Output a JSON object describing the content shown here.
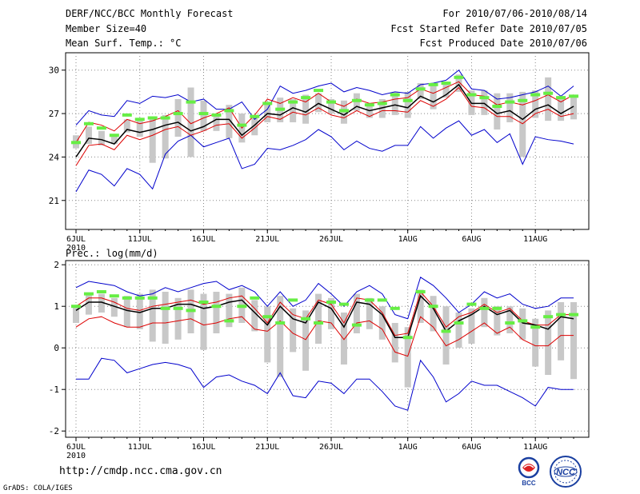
{
  "header": {
    "title": "DERF/NCC/BCC Monthly Forecast",
    "member_size": "Member Size=40",
    "variable": "Mean Surf. Temp.: °C",
    "period": "For 2010/07/06-2010/08/14",
    "refer_date": "Fcst Started Refer Date 2010/07/05",
    "produced_date": "Fcst Produced Date 2010/07/06"
  },
  "footer": {
    "url": "http://cmdp.ncc.cma.gov.cn",
    "grads": "GrADS: COLA/IGES",
    "logo_bcc": "BCC",
    "logo_ncc": "NCC"
  },
  "colors": {
    "upper_envelope": "#0000cc",
    "lower_envelope": "#0000cc",
    "red_band": "#dd0000",
    "ensemble_mean": "#000000",
    "box": "#c8c8c8",
    "climatology": "#66ee44"
  },
  "chart_data": [
    {
      "type": "line",
      "title": "Mean Surf. Temp.: °C",
      "x_start_day": 6,
      "n_days": 40,
      "xticks": [
        {
          "day": 0,
          "label": "6JUL"
        },
        {
          "day": 5,
          "label": "11JUL"
        },
        {
          "day": 10,
          "label": "16JUL"
        },
        {
          "day": 15,
          "label": "21JUL"
        },
        {
          "day": 20,
          "label": "26JUL"
        },
        {
          "day": 26,
          "label": "1AUG"
        },
        {
          "day": 31,
          "label": "6AUG"
        },
        {
          "day": 36,
          "label": "11AUG"
        }
      ],
      "year_label": "2010",
      "yticks": [
        21,
        24,
        27,
        30
      ],
      "ylim": [
        19.0,
        31.2
      ],
      "series": [
        {
          "name": "max",
          "values": [
            26.2,
            27.2,
            26.9,
            26.8,
            27.9,
            27.7,
            28.2,
            28.1,
            28.3,
            27.8,
            28.0,
            27.3,
            27.3,
            27.8,
            26.6,
            27.3,
            28.9,
            28.4,
            28.6,
            28.9,
            29.1,
            28.5,
            28.8,
            28.6,
            28.3,
            28.5,
            28.4,
            29.0,
            29.1,
            29.3,
            30.0,
            28.7,
            28.6,
            28.0,
            28.1,
            28.3,
            28.5,
            28.9,
            28.2,
            28.9
          ]
        },
        {
          "name": "upper",
          "values": [
            25.0,
            26.4,
            26.2,
            25.8,
            26.6,
            26.3,
            26.5,
            26.8,
            27.2,
            26.3,
            26.7,
            27.0,
            27.4,
            26.0,
            26.9,
            28.0,
            27.7,
            28.1,
            27.8,
            28.4,
            27.8,
            27.5,
            28.0,
            27.7,
            27.8,
            28.0,
            28.1,
            28.7,
            28.4,
            28.8,
            29.2,
            28.3,
            28.2,
            27.6,
            27.8,
            27.6,
            27.9,
            28.3,
            27.8,
            28.3
          ]
        },
        {
          "name": "mean",
          "values": [
            24.0,
            25.3,
            25.2,
            24.9,
            25.9,
            25.7,
            25.9,
            26.2,
            26.4,
            25.8,
            26.1,
            26.6,
            26.6,
            25.5,
            26.2,
            27.0,
            26.9,
            27.4,
            27.1,
            27.7,
            27.3,
            26.9,
            27.5,
            27.2,
            27.4,
            27.6,
            27.4,
            28.2,
            27.8,
            28.3,
            29.0,
            27.7,
            27.7,
            27.0,
            27.2,
            26.6,
            27.3,
            27.6,
            27.0,
            27.5
          ]
        },
        {
          "name": "lower",
          "values": [
            23.4,
            24.8,
            24.9,
            24.5,
            25.5,
            25.2,
            25.5,
            25.9,
            26.1,
            25.5,
            25.8,
            26.2,
            26.3,
            25.3,
            26.0,
            26.8,
            26.6,
            27.1,
            26.9,
            27.4,
            26.9,
            26.7,
            27.2,
            26.8,
            27.2,
            27.2,
            27.1,
            27.9,
            27.5,
            28.0,
            28.8,
            27.5,
            27.4,
            26.8,
            26.8,
            26.3,
            27.0,
            27.3,
            26.8,
            27.0
          ]
        },
        {
          "name": "min",
          "values": [
            21.6,
            23.1,
            22.8,
            22.0,
            23.2,
            22.8,
            21.8,
            24.2,
            25.1,
            25.5,
            24.7,
            25.0,
            25.3,
            23.2,
            23.5,
            24.6,
            24.5,
            24.8,
            25.2,
            25.9,
            25.4,
            24.5,
            25.1,
            24.6,
            24.4,
            24.8,
            24.8,
            26.1,
            25.3,
            26.0,
            26.5,
            25.5,
            25.9,
            25.0,
            25.6,
            23.5,
            25.4,
            25.2,
            25.1,
            24.9
          ]
        },
        {
          "name": "box_top",
          "values": [
            25.5,
            26.1,
            25.8,
            25.6,
            26.6,
            26.5,
            26.7,
            26.9,
            28.0,
            28.8,
            27.9,
            27.0,
            27.6,
            27.0,
            26.9,
            27.7,
            28.1,
            28.0,
            28.3,
            28.4,
            28.0,
            27.9,
            28.4,
            27.5,
            28.0,
            28.5,
            28.5,
            29.1,
            29.1,
            29.2,
            29.7,
            28.6,
            28.6,
            28.4,
            28.4,
            28.5,
            28.6,
            29.5,
            28.2,
            28.3
          ]
        },
        {
          "name": "box_bottom",
          "values": [
            24.6,
            24.9,
            24.8,
            24.9,
            25.7,
            25.4,
            23.6,
            23.9,
            25.4,
            24.0,
            25.8,
            25.8,
            25.3,
            25.0,
            25.5,
            26.4,
            26.4,
            26.4,
            26.3,
            27.1,
            27.0,
            26.3,
            27.2,
            26.7,
            26.7,
            26.9,
            26.7,
            28.0,
            27.3,
            28.1,
            28.5,
            26.9,
            26.9,
            25.9,
            26.4,
            24.0,
            26.7,
            26.5,
            26.5,
            26.6
          ]
        },
        {
          "name": "climatology",
          "values": [
            25.0,
            26.3,
            26.0,
            25.5,
            26.9,
            26.6,
            26.7,
            26.7,
            27.0,
            27.8,
            27.0,
            26.9,
            27.2,
            26.2,
            26.8,
            27.7,
            27.3,
            27.8,
            28.1,
            28.6,
            27.8,
            27.2,
            27.9,
            27.6,
            27.7,
            28.3,
            27.9,
            28.7,
            29.0,
            29.1,
            29.5,
            28.3,
            28.1,
            27.5,
            27.8,
            27.9,
            28.3,
            28.4,
            28.1,
            28.2
          ]
        }
      ]
    },
    {
      "type": "line",
      "title": "Prec.: log(mm/d)",
      "x_start_day": 6,
      "n_days": 40,
      "xticks": [
        {
          "day": 0,
          "label": "6JUL"
        },
        {
          "day": 5,
          "label": "11JUL"
        },
        {
          "day": 10,
          "label": "16JUL"
        },
        {
          "day": 15,
          "label": "21JUL"
        },
        {
          "day": 20,
          "label": "26JUL"
        },
        {
          "day": 26,
          "label": "1AUG"
        },
        {
          "day": 31,
          "label": "6AUG"
        },
        {
          "day": 36,
          "label": "11AUG"
        }
      ],
      "year_label": "2010",
      "yticks": [
        -2,
        -1,
        0,
        1,
        2
      ],
      "ylim": [
        -2.15,
        2.1
      ],
      "series": [
        {
          "name": "max",
          "values": [
            1.45,
            1.6,
            1.55,
            1.5,
            1.35,
            1.25,
            1.3,
            1.45,
            1.35,
            1.45,
            1.55,
            1.6,
            1.4,
            1.5,
            1.35,
            1.0,
            1.35,
            1.0,
            1.15,
            1.55,
            1.3,
            1.0,
            1.35,
            1.5,
            1.3,
            0.8,
            0.7,
            1.7,
            1.5,
            1.2,
            0.85,
            1.05,
            1.35,
            1.2,
            1.3,
            1.05,
            0.95,
            1.0,
            1.2,
            1.2
          ]
        },
        {
          "name": "upper",
          "values": [
            1.0,
            1.2,
            1.2,
            1.1,
            0.95,
            0.9,
            1.0,
            1.05,
            1.1,
            1.15,
            1.05,
            1.1,
            1.2,
            1.25,
            0.95,
            0.6,
            1.1,
            0.8,
            0.7,
            1.15,
            1.05,
            0.6,
            1.2,
            1.15,
            0.85,
            0.3,
            0.35,
            1.35,
            1.0,
            0.5,
            0.75,
            0.85,
            1.05,
            0.85,
            0.95,
            0.65,
            0.55,
            0.55,
            0.8,
            0.8
          ]
        },
        {
          "name": "mean",
          "values": [
            0.9,
            1.1,
            1.1,
            1.0,
            0.9,
            0.85,
            0.95,
            0.95,
            1.05,
            1.05,
            0.95,
            1.0,
            1.1,
            1.15,
            0.85,
            0.55,
            1.0,
            0.7,
            0.6,
            1.1,
            0.95,
            0.5,
            1.1,
            1.05,
            0.8,
            0.25,
            0.25,
            1.25,
            0.95,
            0.4,
            0.65,
            0.8,
            1.0,
            0.8,
            0.9,
            0.6,
            0.55,
            0.45,
            0.75,
            0.7
          ]
        },
        {
          "name": "lower",
          "values": [
            0.5,
            0.7,
            0.75,
            0.6,
            0.5,
            0.5,
            0.6,
            0.6,
            0.65,
            0.7,
            0.55,
            0.6,
            0.7,
            0.75,
            0.45,
            0.4,
            0.65,
            0.35,
            0.2,
            0.65,
            0.6,
            0.2,
            0.6,
            0.65,
            0.45,
            -0.1,
            -0.2,
            0.75,
            0.5,
            0.05,
            0.2,
            0.4,
            0.6,
            0.35,
            0.5,
            0.2,
            0.05,
            0.05,
            0.3,
            0.3
          ]
        },
        {
          "name": "min",
          "values": [
            -0.75,
            -0.75,
            -0.25,
            -0.3,
            -0.6,
            -0.5,
            -0.4,
            -0.35,
            -0.4,
            -0.5,
            -0.95,
            -0.7,
            -0.65,
            -0.8,
            -0.9,
            -1.1,
            -0.6,
            -1.15,
            -1.2,
            -0.8,
            -0.85,
            -1.1,
            -0.75,
            -0.75,
            -1.05,
            -1.4,
            -1.5,
            -0.3,
            -0.7,
            -1.3,
            -1.1,
            -0.8,
            -0.9,
            -0.9,
            -1.05,
            -1.2,
            -1.4,
            -0.95,
            -1.0,
            -1.0
          ]
        },
        {
          "name": "box_top",
          "values": [
            1.0,
            1.3,
            1.3,
            1.2,
            1.25,
            1.3,
            1.4,
            1.35,
            1.2,
            1.4,
            1.3,
            1.35,
            1.3,
            1.45,
            1.15,
            1.0,
            1.25,
            0.95,
            0.9,
            1.3,
            1.2,
            0.85,
            1.3,
            1.2,
            1.0,
            0.6,
            0.5,
            1.4,
            1.25,
            1.0,
            0.85,
            0.95,
            1.2,
            1.0,
            1.0,
            0.95,
            0.7,
            0.9,
            1.1,
            1.1
          ]
        },
        {
          "name": "box_bottom",
          "values": [
            0.6,
            0.8,
            0.85,
            0.75,
            0.5,
            0.45,
            0.15,
            0.1,
            0.2,
            0.35,
            -0.05,
            0.35,
            0.5,
            0.6,
            0.4,
            -0.35,
            -0.7,
            -0.1,
            -0.55,
            0.1,
            0.45,
            -0.4,
            0.35,
            0.45,
            0.2,
            -0.35,
            -0.95,
            0.6,
            0.4,
            -0.4,
            0.0,
            0.1,
            0.5,
            0.3,
            0.35,
            0.2,
            -0.45,
            -0.65,
            -0.3,
            -0.75
          ]
        },
        {
          "name": "climatology",
          "values": [
            1.0,
            1.3,
            1.35,
            1.25,
            1.2,
            1.2,
            1.2,
            0.95,
            0.95,
            0.9,
            1.1,
            1.0,
            0.65,
            1.0,
            1.2,
            0.75,
            0.6,
            1.15,
            0.7,
            0.6,
            1.1,
            1.05,
            0.55,
            1.15,
            1.15,
            0.95,
            0.25,
            1.35,
            1.0,
            0.4,
            0.6,
            1.05,
            0.95,
            0.95,
            0.6,
            0.65,
            0.5,
            0.75,
            0.8,
            0.8
          ]
        }
      ]
    }
  ]
}
